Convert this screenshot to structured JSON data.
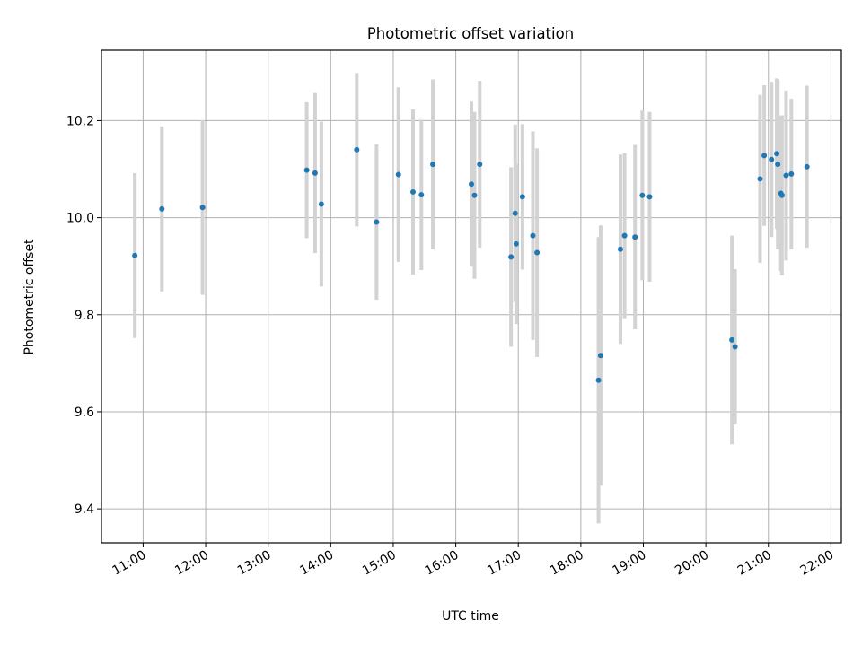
{
  "chart_data": {
    "type": "scatter",
    "title": "Photometric offset variation",
    "xlabel": "UTC time",
    "ylabel": "Photometric offset",
    "grid": true,
    "x_ticks": [
      "11:00",
      "12:00",
      "13:00",
      "14:00",
      "15:00",
      "16:00",
      "17:00",
      "18:00",
      "19:00",
      "20:00",
      "21:00",
      "22:00"
    ],
    "y_ticks": [
      "9.4",
      "9.6",
      "9.8",
      "10.0",
      "10.2"
    ],
    "xlim": [
      "10:20",
      "22:10"
    ],
    "ylim": [
      9.33,
      10.345
    ],
    "colors": {
      "points": "#1f77b4",
      "errorbars": "#d3d3d3",
      "grid": "#b0b0b0"
    },
    "points": [
      {
        "x": "10:52",
        "y": 9.922,
        "err": 0.17
      },
      {
        "x": "11:18",
        "y": 10.018,
        "err": 0.17
      },
      {
        "x": "11:57",
        "y": 10.021,
        "err": 0.18
      },
      {
        "x": "13:37",
        "y": 10.098,
        "err": 0.14
      },
      {
        "x": "13:45",
        "y": 10.092,
        "err": 0.165
      },
      {
        "x": "13:51",
        "y": 10.028,
        "err": 0.17
      },
      {
        "x": "14:25",
        "y": 10.14,
        "err": 0.158
      },
      {
        "x": "14:44",
        "y": 9.991,
        "err": 0.16
      },
      {
        "x": "15:05",
        "y": 10.089,
        "err": 0.18
      },
      {
        "x": "15:19",
        "y": 10.053,
        "err": 0.17
      },
      {
        "x": "15:27",
        "y": 10.047,
        "err": 0.155
      },
      {
        "x": "15:38",
        "y": 10.11,
        "err": 0.175
      },
      {
        "x": "16:15",
        "y": 10.069,
        "err": 0.17
      },
      {
        "x": "16:18",
        "y": 10.046,
        "err": 0.172
      },
      {
        "x": "16:23",
        "y": 10.11,
        "err": 0.172
      },
      {
        "x": "16:53",
        "y": 9.919,
        "err": 0.185
      },
      {
        "x": "16:57",
        "y": 10.009,
        "err": 0.183
      },
      {
        "x": "16:58",
        "y": 9.946,
        "err": 0.165
      },
      {
        "x": "17:04",
        "y": 10.043,
        "err": 0.15
      },
      {
        "x": "17:14",
        "y": 9.963,
        "err": 0.215
      },
      {
        "x": "17:18",
        "y": 9.928,
        "err": 0.215
      },
      {
        "x": "18:17",
        "y": 9.665,
        "err": 0.295
      },
      {
        "x": "18:19",
        "y": 9.716,
        "err": 0.268
      },
      {
        "x": "18:38",
        "y": 9.935,
        "err": 0.195
      },
      {
        "x": "18:42",
        "y": 9.963,
        "err": 0.17
      },
      {
        "x": "18:52",
        "y": 9.96,
        "err": 0.19
      },
      {
        "x": "18:59",
        "y": 10.046,
        "err": 0.175
      },
      {
        "x": "19:06",
        "y": 10.043,
        "err": 0.175
      },
      {
        "x": "20:25",
        "y": 9.748,
        "err": 0.215
      },
      {
        "x": "20:28",
        "y": 9.734,
        "err": 0.16
      },
      {
        "x": "20:52",
        "y": 10.08,
        "err": 0.173
      },
      {
        "x": "20:56",
        "y": 10.128,
        "err": 0.145
      },
      {
        "x": "21:03",
        "y": 10.12,
        "err": 0.16
      },
      {
        "x": "21:08",
        "y": 10.132,
        "err": 0.155
      },
      {
        "x": "21:09",
        "y": 10.11,
        "err": 0.175
      },
      {
        "x": "21:12",
        "y": 10.05,
        "err": 0.16
      },
      {
        "x": "21:13",
        "y": 10.046,
        "err": 0.165
      },
      {
        "x": "21:17",
        "y": 10.087,
        "err": 0.175
      },
      {
        "x": "21:22",
        "y": 10.09,
        "err": 0.155
      },
      {
        "x": "21:37",
        "y": 10.105,
        "err": 0.167
      }
    ]
  }
}
